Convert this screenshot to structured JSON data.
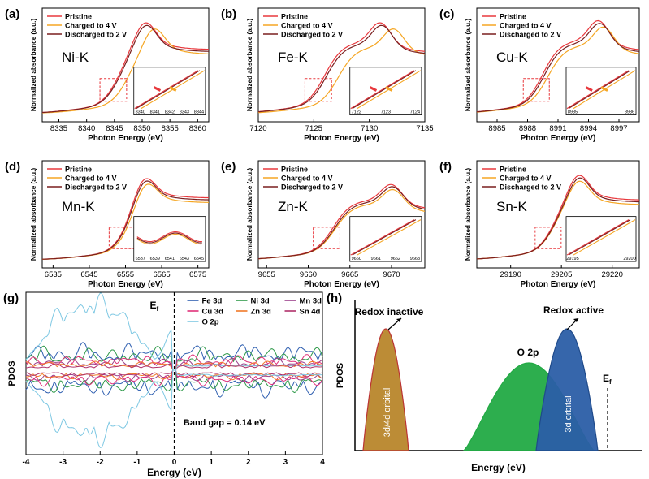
{
  "colors": {
    "pristine": "#e8383d",
    "charged": "#f5a623",
    "discharged": "#7a1f1f",
    "dashbox": "#e8383d",
    "fe3d": "#2f5fb0",
    "ni3d": "#2f9a4a",
    "mn3d": "#9b3f8a",
    "cu3d": "#e0307a",
    "zn3d": "#f07a28",
    "sn4d": "#b0306a",
    "o2p": "#7ec8e3",
    "orbital": "#b8862b",
    "o2pfill": "#22aa44",
    "active": "#2b5ea7"
  },
  "xas_common": {
    "ylabel": "Normalized absorbance (a.u.)",
    "xlabel": "Photon Energy (eV)",
    "legend": [
      "Pristine",
      "Charged to 4 V",
      "Discharged to 2 V"
    ]
  },
  "chart_data": [
    {
      "panel": "(a)",
      "element": "Ni-K",
      "type": "line",
      "xlim": [
        8332,
        8362
      ],
      "xticks": [
        8335,
        8340,
        8345,
        8350,
        8355,
        8360
      ],
      "edge": 8346,
      "peak": 8350.5,
      "shift_charged": 1.6,
      "peak_height": 0.92,
      "inset_ticks": [
        "8340",
        "8341",
        "8342",
        "8343",
        "8344"
      ]
    },
    {
      "panel": "(b)",
      "element": "Fe-K",
      "type": "line",
      "xlim": [
        7120,
        7135
      ],
      "xticks": [
        7120,
        7125,
        7130,
        7135
      ],
      "edge": 7126,
      "peak": 7131,
      "shift_charged": 1.2,
      "peak_height": 0.88,
      "inset_ticks": [
        "7122",
        "7123",
        "7124"
      ]
    },
    {
      "panel": "(c)",
      "element": "Cu-K",
      "type": "line",
      "xlim": [
        8983,
        8999
      ],
      "xticks": [
        8985,
        8988,
        8991,
        8994,
        8997
      ],
      "edge": 8989.5,
      "peak": 8995,
      "shift_charged": 0.5,
      "peak_height": 0.9,
      "inset_ticks": [
        "8985",
        "8986"
      ]
    },
    {
      "panel": "(d)",
      "element": "Mn-K",
      "type": "line",
      "xlim": [
        6532,
        6578
      ],
      "xticks": [
        6535,
        6545,
        6555,
        6565,
        6575
      ],
      "edge": 6556,
      "peak": 6560,
      "shift_charged": 0.5,
      "peak_height": 0.95,
      "inset_ticks": [
        "6537",
        "6539",
        "6541",
        "6543",
        "6545"
      ]
    },
    {
      "panel": "(e)",
      "element": "Zn-K",
      "type": "line",
      "xlim": [
        9654,
        9674
      ],
      "xticks": [
        9655,
        9660,
        9665,
        9670
      ],
      "edge": 9663,
      "peak": 9670,
      "shift_charged": 0.2,
      "peak_height": 0.78,
      "inset_ticks": [
        "9660",
        "9661",
        "9662",
        "9663"
      ]
    },
    {
      "panel": "(f)",
      "element": "Sn-K",
      "type": "line",
      "xlim": [
        29180,
        29228
      ],
      "xticks": [
        29190,
        29205,
        29220
      ],
      "edge": 29203,
      "peak": 29210,
      "shift_charged": 0.1,
      "peak_height": 0.92,
      "inset_ticks": [
        "29195",
        "29200"
      ]
    },
    {
      "panel": "(g)",
      "type": "line",
      "xlabel": "Energy (eV)",
      "ylabel": "PDOS",
      "xlim": [
        -4,
        4
      ],
      "xticks": [
        -4,
        -3,
        -2,
        -1,
        0,
        1,
        2,
        3,
        4
      ],
      "fermi_label": "E",
      "fermi_sub": "f",
      "annotation": "Band gap = 0.14 eV",
      "series": [
        {
          "name": "Fe 3d",
          "color_key": "fe3d",
          "amp": 0.35
        },
        {
          "name": "Ni 3d",
          "color_key": "ni3d",
          "amp": 0.3
        },
        {
          "name": "Mn 3d",
          "color_key": "mn3d",
          "amp": 0.15
        },
        {
          "name": "Cu 3d",
          "color_key": "cu3d",
          "amp": 0.2
        },
        {
          "name": "Zn 3d",
          "color_key": "zn3d",
          "amp": 0.12
        },
        {
          "name": "Sn 4d",
          "color_key": "sn4d",
          "amp": 0.08
        },
        {
          "name": "O 2p",
          "color_key": "o2p",
          "amp": 1.0
        }
      ]
    },
    {
      "panel": "(h)",
      "type": "area",
      "xlabel": "Energy (eV)",
      "ylabel": "PDOS",
      "labels": {
        "inactive": "Redox inactive",
        "orbital": "3d/4d orbital",
        "o2p": "O 2p",
        "active": "Redox active",
        "d3": "3d orbital",
        "ef": "E",
        "ef_sub": "f"
      }
    }
  ]
}
